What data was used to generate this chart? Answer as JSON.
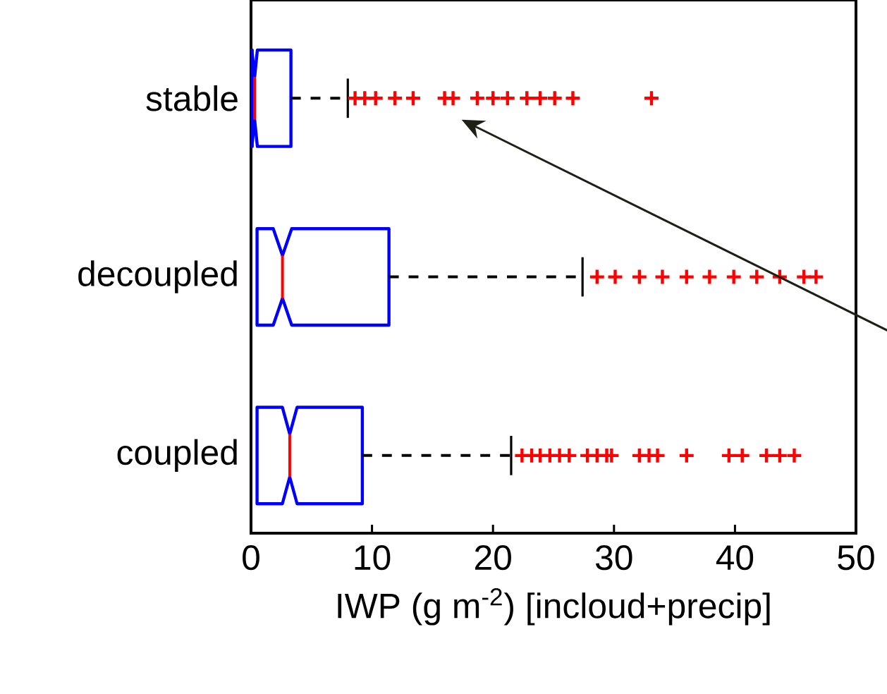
{
  "chart_data": {
    "type": "box",
    "orientation": "horizontal",
    "xlabel": "IWP (g m$^{-2}$) [incloud+precip]",
    "categories": [
      "stable",
      "decoupled",
      "coupled"
    ],
    "xlim": [
      0,
      50
    ],
    "xticks": [
      0,
      10,
      20,
      30,
      40,
      50
    ],
    "boxes": [
      {
        "low": 0.1,
        "q1": 0.1,
        "median": 0.3,
        "q3": 3.3,
        "high": 8.0,
        "outliers": [
          8.6,
          9.4,
          10.3,
          11.9,
          13.4,
          16.0,
          16.7,
          18.7,
          20.0,
          21.2,
          22.8,
          23.9,
          25.1,
          26.6,
          33.1
        ]
      },
      {
        "low": 0.5,
        "q1": 0.5,
        "median": 2.6,
        "q3": 11.4,
        "high": 27.4,
        "outliers": [
          28.6,
          30.1,
          32.1,
          34.0,
          36.0,
          37.9,
          39.9,
          41.8,
          43.7,
          45.7,
          46.7
        ]
      },
      {
        "low": 0.5,
        "q1": 0.5,
        "median": 3.2,
        "q3": 9.2,
        "high": 21.5,
        "outliers": [
          22.4,
          23.2,
          23.9,
          24.7,
          25.5,
          26.3,
          27.8,
          28.6,
          29.4,
          29.8,
          32.1,
          32.9,
          33.6,
          36.0,
          39.5,
          40.6,
          42.6,
          43.7,
          44.9
        ]
      }
    ]
  }
}
